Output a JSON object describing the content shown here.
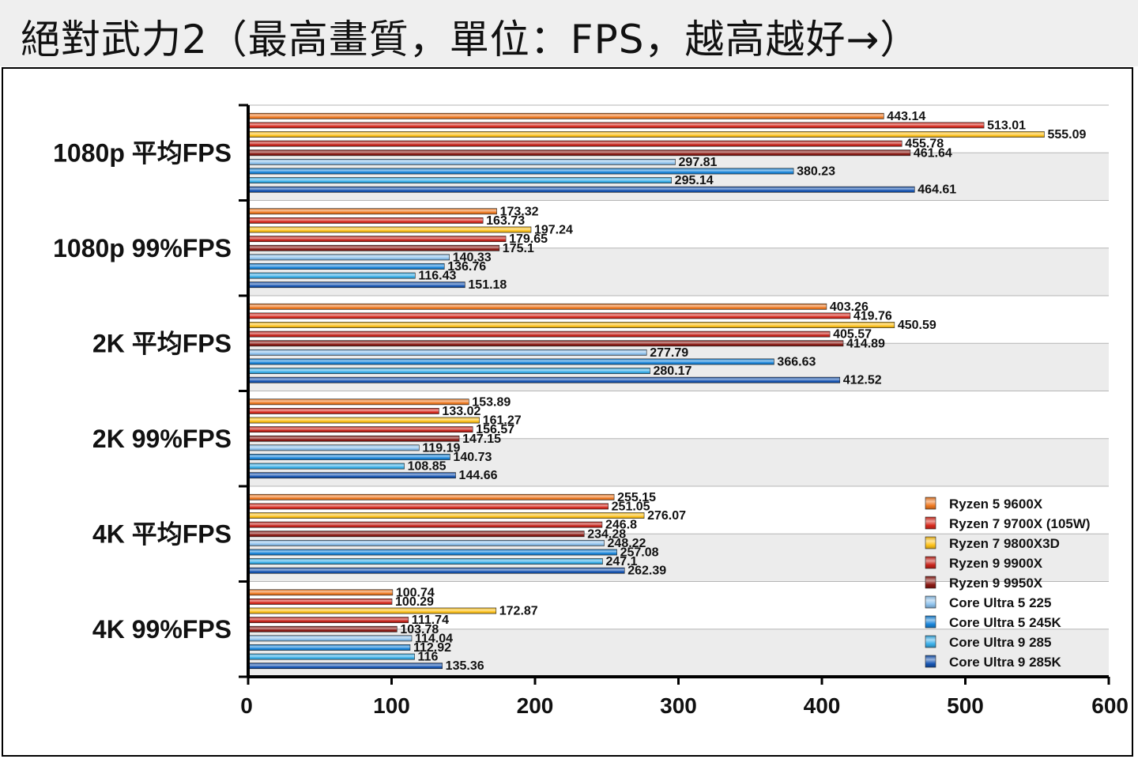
{
  "title": "絕對武力2（最高畫質，單位：FPS，越高越好→）",
  "chart_data": {
    "type": "bar",
    "orientation": "horizontal",
    "xlim": [
      0,
      600
    ],
    "x_ticks": [
      0,
      100,
      200,
      300,
      400,
      500,
      600
    ],
    "grid": true,
    "legend_position": "bottom-right",
    "categories": [
      "1080p 平均FPS",
      "1080p 99%FPS",
      "2K 平均FPS",
      "2K 99%FPS",
      "4K 平均FPS",
      "4K 99%FPS"
    ],
    "series": [
      {
        "name": "Ryzen 5 9600X",
        "color": "#f07a22",
        "values": [
          443.14,
          173.32,
          403.26,
          153.89,
          255.15,
          100.74
        ]
      },
      {
        "name": "Ryzen 7 9700X (105W)",
        "color": "#d92b1f",
        "values": [
          513.01,
          163.73,
          419.76,
          133.02,
          251.05,
          100.29
        ]
      },
      {
        "name": "Ryzen 7 9800X3D",
        "color": "#ffc21a",
        "values": [
          555.09,
          197.24,
          450.59,
          161.27,
          276.07,
          172.87
        ]
      },
      {
        "name": "Ryzen 9 9900X",
        "color": "#c8241b",
        "values": [
          455.78,
          179.65,
          405.57,
          156.57,
          246.8,
          111.74
        ]
      },
      {
        "name": "Ryzen 9 9950X",
        "color": "#8c1a14",
        "values": [
          461.64,
          175.1,
          414.89,
          147.15,
          234.28,
          103.78
        ]
      },
      {
        "name": "Core Ultra 5 225",
        "color": "#8fc3ee",
        "values": [
          297.81,
          140.33,
          277.79,
          119.19,
          248.22,
          114.04
        ]
      },
      {
        "name": "Core Ultra 5 245K",
        "color": "#1a86dc",
        "values": [
          380.23,
          136.76,
          366.63,
          140.73,
          257.08,
          112.92
        ]
      },
      {
        "name": "Core Ultra 9 285",
        "color": "#3ab0ea",
        "values": [
          295.14,
          116.43,
          280.17,
          108.85,
          247.1,
          116
        ]
      },
      {
        "name": "Core Ultra 9 285K",
        "color": "#1756b4",
        "values": [
          464.61,
          151.18,
          412.52,
          144.66,
          262.39,
          135.36
        ]
      }
    ],
    "value_labels": [
      [
        "443.14",
        "173.32",
        "403.26",
        "153.89",
        "255.15",
        "100.74"
      ],
      [
        "513.01",
        "163.73",
        "419.76",
        "133.02",
        "251.05",
        "100.29"
      ],
      [
        "555.09",
        "197.24",
        "450.59",
        "161.27",
        "276.07",
        "172.87"
      ],
      [
        "455.78",
        "179.65",
        "405.57",
        "156.57",
        "246.8",
        "111.74"
      ],
      [
        "461.64",
        "175.1",
        "414.89",
        "147.15",
        "234.28",
        "103.78"
      ],
      [
        "297.81",
        "140.33",
        "277.79",
        "119.19",
        "248.22",
        "114.04"
      ],
      [
        "380.23",
        "136.76",
        "366.63",
        "140.73",
        "257.08",
        "112.92"
      ],
      [
        "295.14",
        "116.43",
        "280.17",
        "108.85",
        "247.1",
        "116"
      ],
      [
        "464.61",
        "151.18",
        "412.52",
        "144.66",
        "262.39",
        "135.36"
      ]
    ]
  }
}
